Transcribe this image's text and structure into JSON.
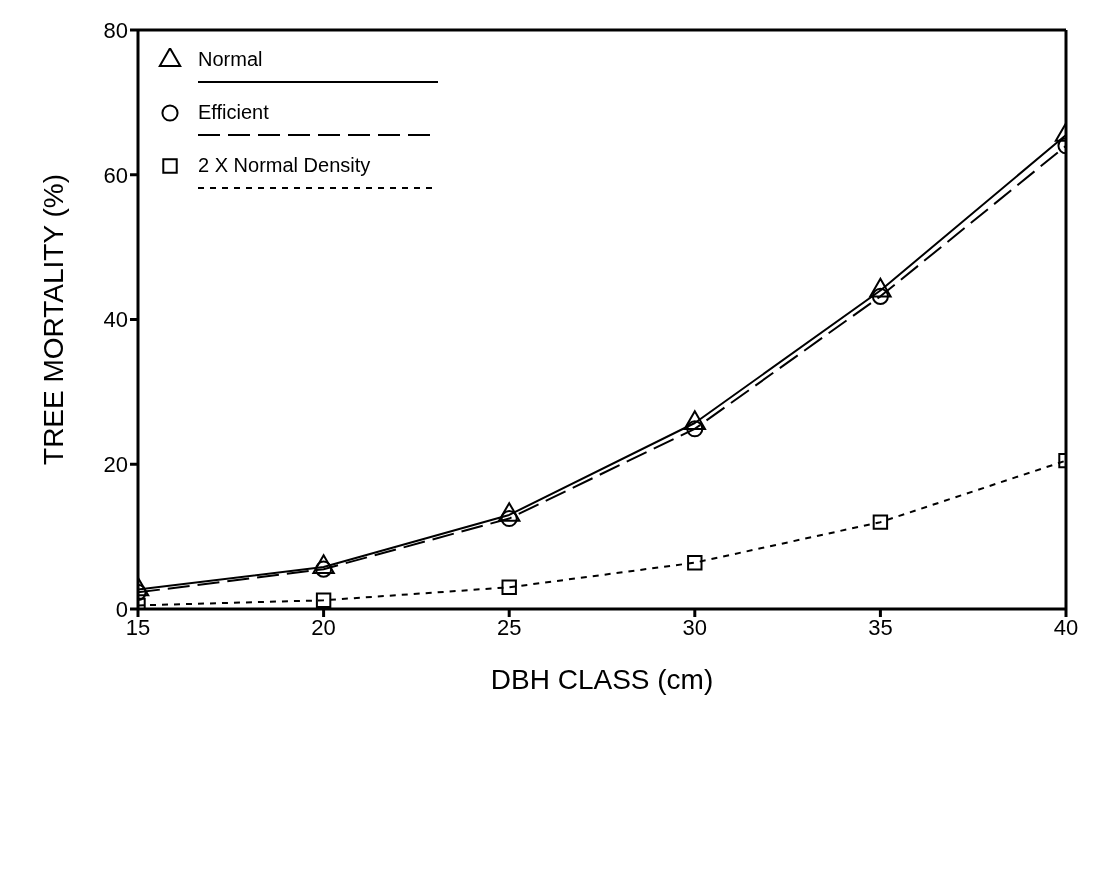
{
  "chart_data": {
    "type": "line",
    "xlabel": "DBH CLASS (cm)",
    "ylabel": "TREE MORTALITY (%)",
    "x": [
      15,
      20,
      25,
      30,
      35,
      40
    ],
    "xlim": [
      15,
      40
    ],
    "xticks": [
      15,
      20,
      25,
      30,
      35,
      40
    ],
    "ylim": [
      0,
      80
    ],
    "yticks": [
      0,
      20,
      40,
      60,
      80
    ],
    "grid": false,
    "legend": "top left",
    "series": [
      {
        "name": "Normal",
        "color": "#000000",
        "marker": "triangle",
        "line_style": "solid",
        "values": [
          2.7,
          5.8,
          13,
          25.7,
          44,
          65.5
        ]
      },
      {
        "name": "Efficient",
        "color": "#000000",
        "marker": "circle",
        "line_style": "dashed",
        "values": [
          2.3,
          5.5,
          12.5,
          24.9,
          43.2,
          64
        ]
      },
      {
        "name": "2 X Normal Density",
        "color": "#000000",
        "marker": "square",
        "line_style": "dotted",
        "values": [
          0.5,
          1.2,
          3,
          6.4,
          12,
          20.5
        ]
      }
    ]
  }
}
